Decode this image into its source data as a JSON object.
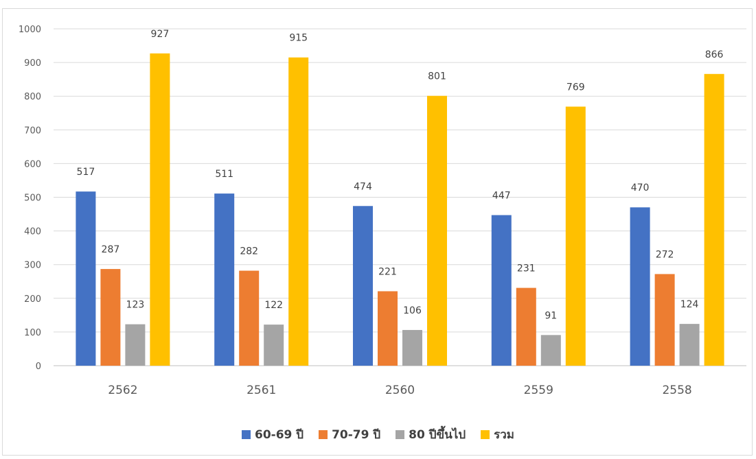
{
  "chart_data": {
    "type": "bar",
    "categories": [
      "2562",
      "2561",
      "2560",
      "2559",
      "2558"
    ],
    "series": [
      {
        "name": "60-69 ปี",
        "values": [
          517,
          511,
          474,
          447,
          470
        ],
        "color": "#4472C4"
      },
      {
        "name": "70-79 ปี",
        "values": [
          287,
          282,
          221,
          231,
          272
        ],
        "color": "#ED7D31"
      },
      {
        "name": "80 ปีขึ้นไป",
        "values": [
          123,
          122,
          106,
          91,
          124
        ],
        "color": "#A5A5A5"
      },
      {
        "name": "รวม",
        "values": [
          927,
          915,
          801,
          769,
          866
        ],
        "color": "#FFC000"
      }
    ],
    "yticks": [
      "0",
      "100",
      "200",
      "300",
      "400",
      "500",
      "600",
      "700",
      "800",
      "900",
      "1000"
    ],
    "ylim": [
      0,
      1000
    ],
    "grid": true,
    "legend_position": "bottom",
    "data_labels": true,
    "title": "",
    "xlabel": "",
    "ylabel": ""
  }
}
